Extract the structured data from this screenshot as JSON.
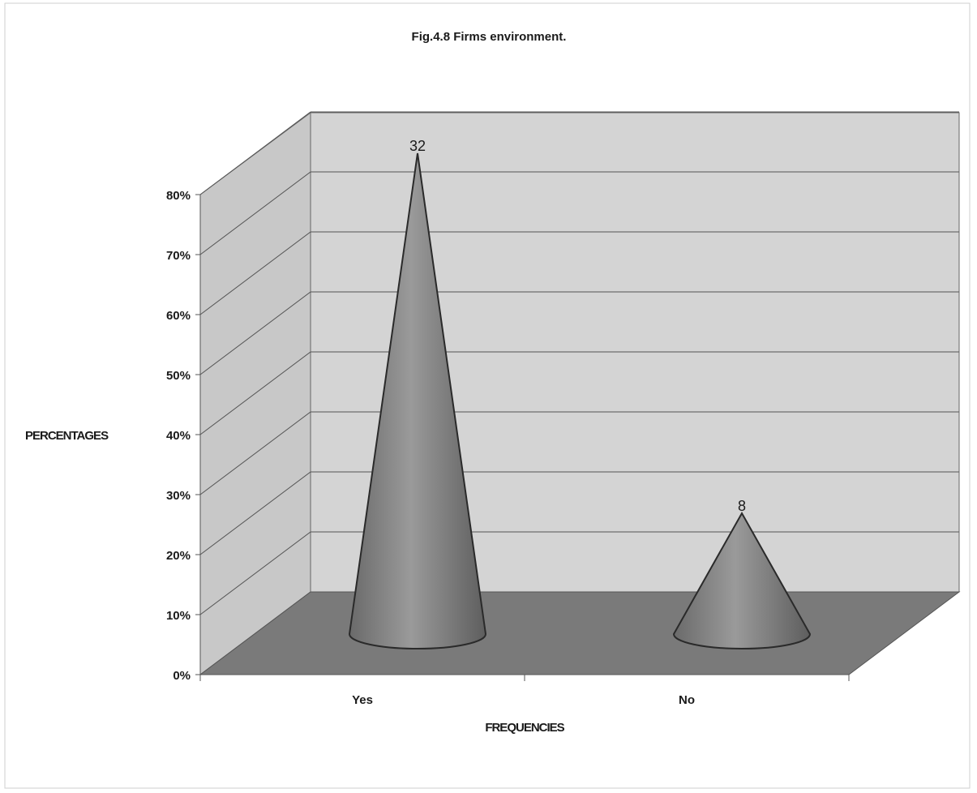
{
  "chart_data": {
    "type": "bar",
    "style": "3d-cone",
    "title": "Fig.4.8 Firms environment.",
    "xlabel": "FREQUENCIES",
    "ylabel": "PERCENTAGES",
    "categories": [
      "Yes",
      "No"
    ],
    "series": [
      {
        "values": [
          80,
          20
        ],
        "data_labels": [
          "32",
          "8"
        ]
      }
    ],
    "ylim": [
      0,
      80
    ],
    "yticks": [
      "0%",
      "10%",
      "20%",
      "30%",
      "40%",
      "50%",
      "60%",
      "70%",
      "80%"
    ],
    "grid": true,
    "legend": "none",
    "colors": {
      "bar": "#7f7f7f",
      "floor": "#7a7a7a",
      "wall": "#d4d4d4",
      "side_wall": "#c8c8c8",
      "grid": "#555555"
    }
  }
}
